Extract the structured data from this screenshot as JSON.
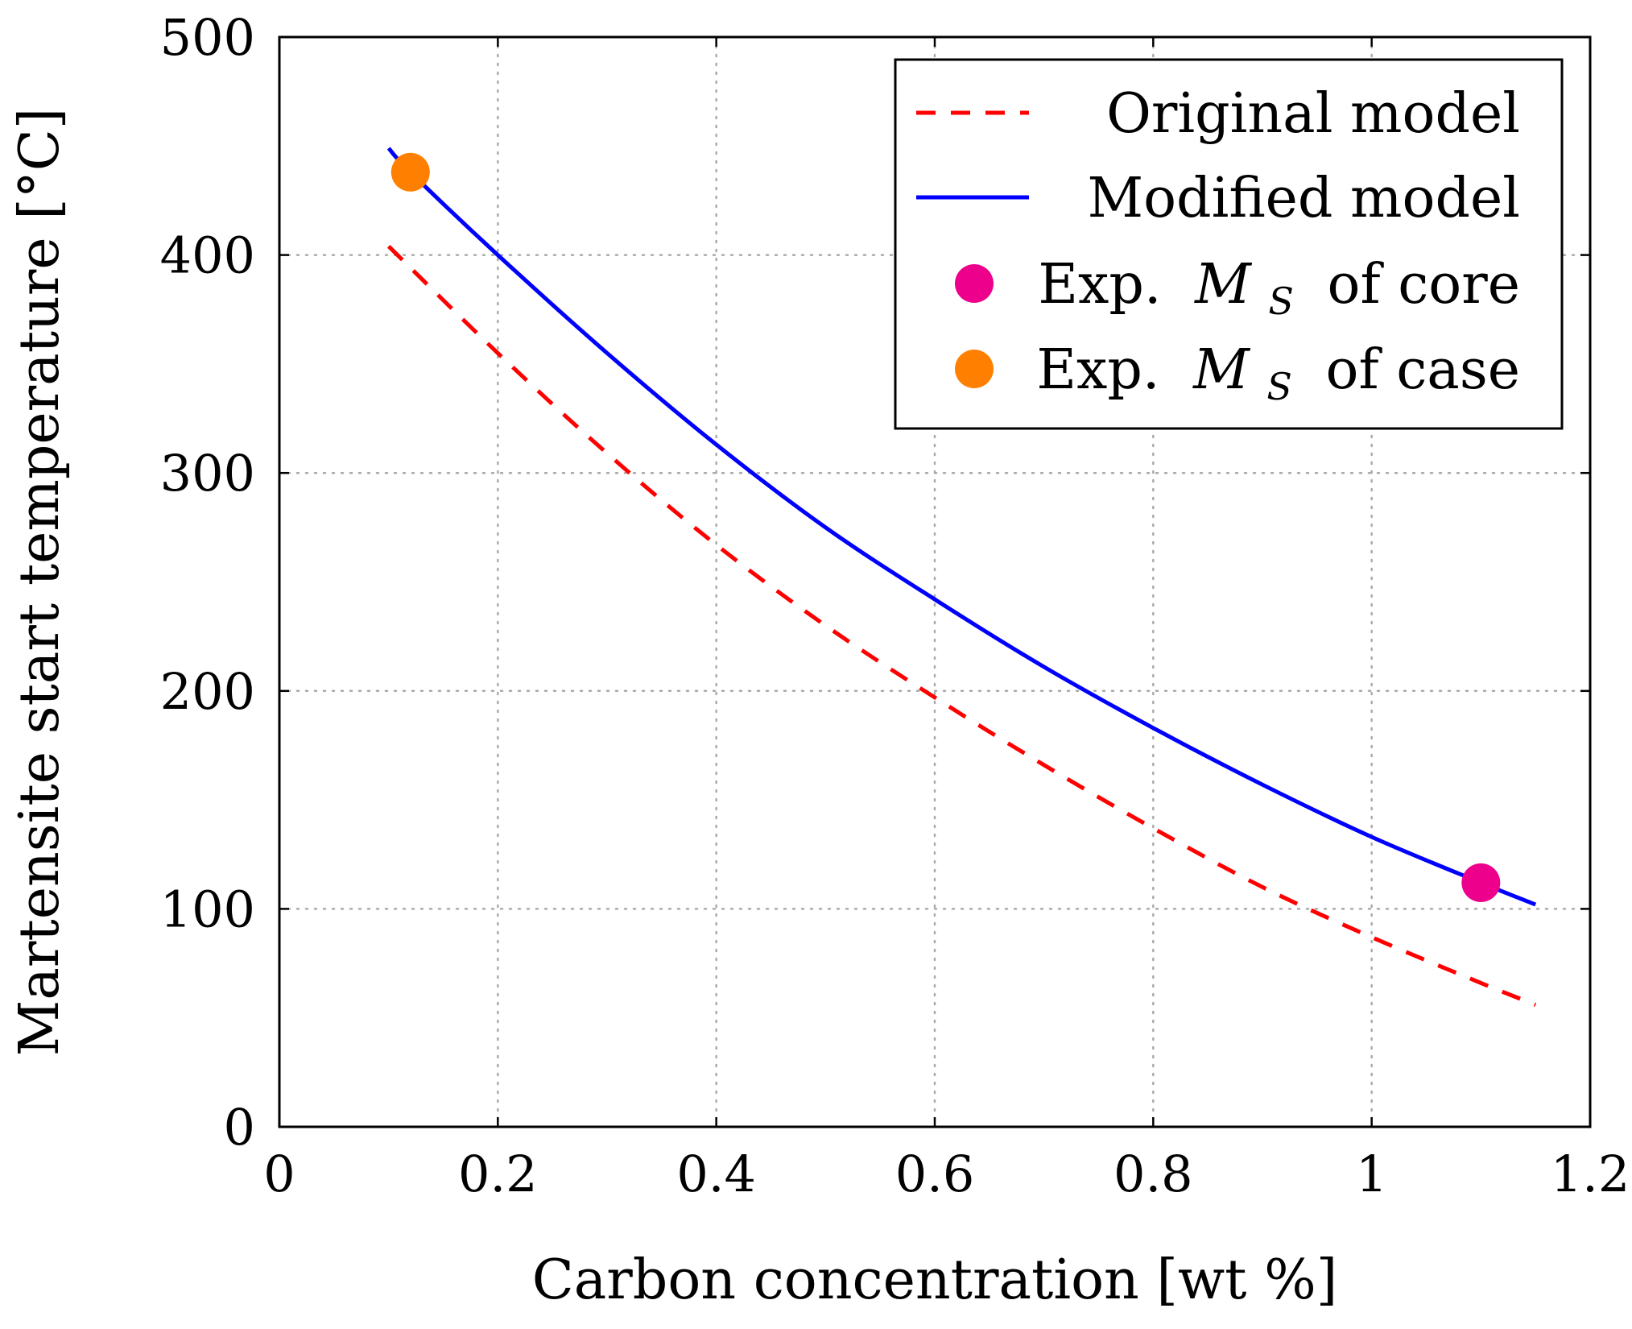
{
  "chart_data": {
    "type": "line",
    "title": "",
    "xlabel": "Carbon concentration [wt %]",
    "ylabel": "Martensite start temperature [°C]",
    "xlim": [
      0,
      1.2
    ],
    "ylim": [
      0,
      500
    ],
    "x_ticks": [
      "0",
      "0.2",
      "0.4",
      "0.6",
      "0.8",
      "1",
      "1.2"
    ],
    "y_ticks": [
      "0",
      "100",
      "200",
      "300",
      "400",
      "500"
    ],
    "grid": true,
    "legend_position": "top-right",
    "series": [
      {
        "name": "Original model",
        "style": "dashed",
        "color": "#ff0000",
        "x": [
          0.1,
          0.2,
          0.3,
          0.4,
          0.5,
          0.6,
          0.7,
          0.8,
          0.9,
          1.0,
          1.1,
          1.15
        ],
        "y": [
          404,
          355,
          309,
          267,
          230,
          197,
          166,
          137,
          110,
          87,
          66,
          56
        ]
      },
      {
        "name": "Modified model",
        "style": "solid",
        "color": "#0000ff",
        "x": [
          0.1,
          0.12,
          0.2,
          0.3,
          0.4,
          0.5,
          0.6,
          0.7,
          0.8,
          0.9,
          1.0,
          1.1,
          1.15
        ],
        "y": [
          449,
          438,
          400,
          355,
          313,
          275,
          242,
          211,
          183,
          157,
          133,
          112,
          102
        ]
      }
    ],
    "points": [
      {
        "name": "Exp. M_S of core",
        "label_prefix": "Exp.",
        "label_symbol": "M",
        "label_sub": "S",
        "label_suffix": "of core",
        "x": 1.1,
        "y": 112,
        "color": "#ec008c"
      },
      {
        "name": "Exp. M_S of case",
        "label_prefix": "Exp.",
        "label_symbol": "M",
        "label_sub": "S",
        "label_suffix": "of case",
        "x": 0.12,
        "y": 438,
        "color": "#ff8000"
      }
    ]
  }
}
